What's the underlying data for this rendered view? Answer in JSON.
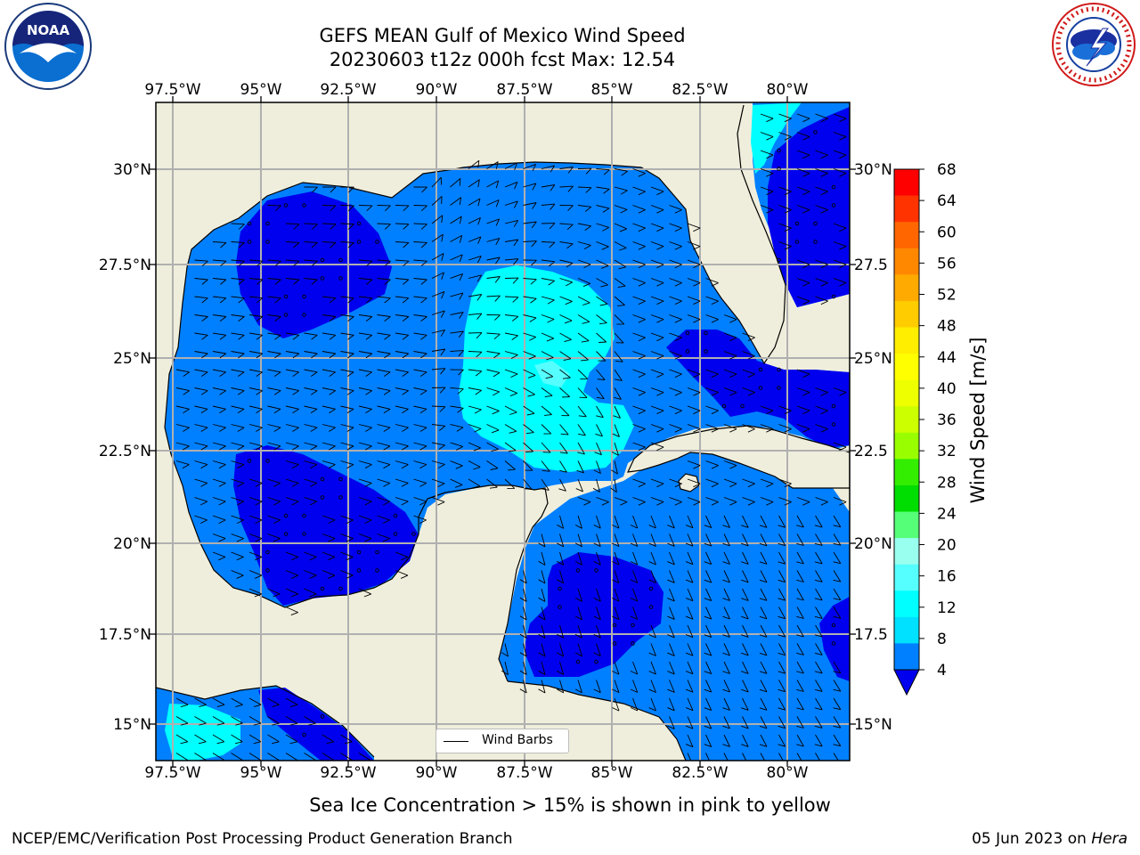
{
  "title": {
    "line1": "GEFS MEAN Gulf of Mexico Wind Speed",
    "line2": "20230603 t12z 000h fcst   Max: 12.54"
  },
  "lon_labels": [
    "97.5°W",
    "95°W",
    "92.5°W",
    "90°W",
    "87.5°W",
    "85°W",
    "82.5°W",
    "80°W"
  ],
  "lat_labels_left": [
    "30°N",
    "27.5°N",
    "25°N",
    "22.5°N",
    "20°N",
    "17.5°N",
    "15°N"
  ],
  "lat_labels_right": [
    "30°N",
    "27.5",
    "25°N",
    "22.5",
    "20°N",
    "17.5",
    "15°N"
  ],
  "colorbar": {
    "label": "Wind Speed [m/s]",
    "ticks": [
      "68",
      "64",
      "60",
      "56",
      "52",
      "48",
      "44",
      "40",
      "36",
      "32",
      "28",
      "24",
      "20",
      "16",
      "12",
      "8",
      "4"
    ],
    "colors_top_to_bottom": [
      "#ff0000",
      "#ff3300",
      "#ff6600",
      "#ff8800",
      "#ffaa00",
      "#ffcc00",
      "#ffee00",
      "#ffff00",
      "#eeff00",
      "#ccff00",
      "#99ff00",
      "#33ee00",
      "#00dd00",
      "#55ff77",
      "#99ffee",
      "#55ffff",
      "#00ffff",
      "#00e0ff",
      "#0080ff"
    ],
    "underflow_color": "#0000ee"
  },
  "legend": {
    "label": "Wind Barbs"
  },
  "ice_caption": "Sea Ice Concentration > 15% is shown in pink to yellow",
  "footer": {
    "left": "NCEP/EMC/Verification Post Processing Product Generation Branch",
    "right_date": "05 Jun 2023 on ",
    "right_host": "Hera"
  },
  "colors": {
    "land": "#efeedc",
    "speed_lt4": "#0000ee",
    "speed_4_8": "#0080ff",
    "speed_8_12": "#00ffff",
    "speed_12_16": "#55ffff",
    "grid": "#b0b0b0"
  }
}
